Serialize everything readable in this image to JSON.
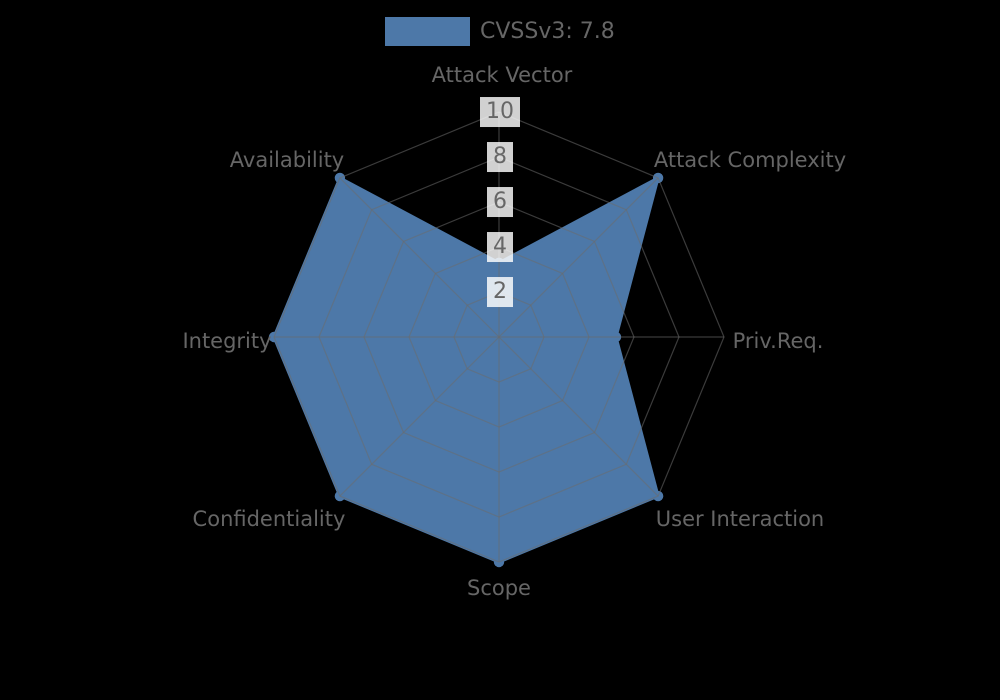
{
  "chart_data": {
    "type": "radar",
    "title": "CVSSv3: 7.8",
    "legend": {
      "label": "CVSSv3: 7.8",
      "position": "top-center"
    },
    "axes": [
      {
        "label": "Attack Vector",
        "value": 3.3
      },
      {
        "label": "Attack Complexity",
        "value": 10
      },
      {
        "label": "Priv.Req.",
        "value": 5.2
      },
      {
        "label": "User Interaction",
        "value": 10
      },
      {
        "label": "Scope",
        "value": 10
      },
      {
        "label": "Confidentiality",
        "value": 10
      },
      {
        "label": "Integrity",
        "value": 10
      },
      {
        "label": "Availability",
        "value": 10
      }
    ],
    "scale": {
      "min": 0,
      "max": 10,
      "ticks": [
        10,
        8,
        6,
        4,
        2
      ]
    },
    "grid": true,
    "colors": {
      "series_fill": "#4d78a8",
      "text": "#666666",
      "tick_box": "#ffffff",
      "grid_line": "#6c6c6c",
      "background": "#000000"
    }
  }
}
